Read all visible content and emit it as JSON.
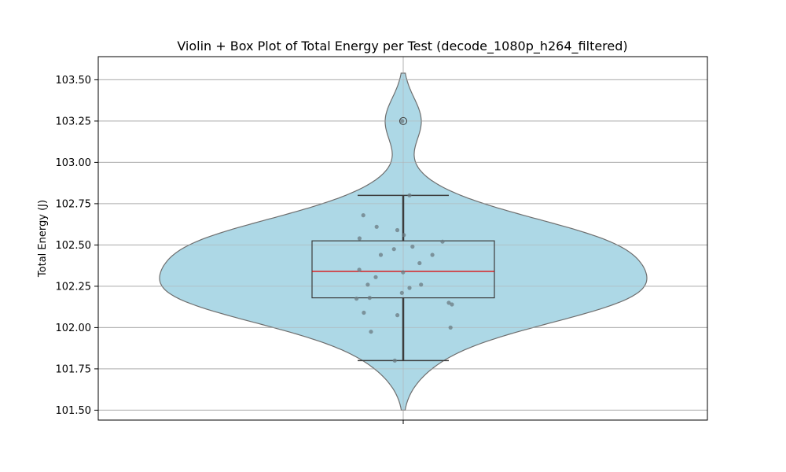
{
  "chart_data": {
    "type": "violin",
    "title": "Violin + Box Plot of Total Energy per Test (decode_1080p_h264_filtered)",
    "xlabel": "",
    "ylabel": "Total Energy (J)",
    "ylim": [
      101.44,
      103.64
    ],
    "yticks": [
      101.5,
      101.75,
      102.0,
      102.25,
      102.5,
      102.75,
      103.0,
      103.25,
      103.5
    ],
    "ytick_labels": [
      "101.50",
      "101.75",
      "102.00",
      "102.25",
      "102.50",
      "102.75",
      "103.00",
      "103.25",
      "103.50"
    ],
    "grid": true,
    "violin_range": [
      101.5,
      103.54
    ],
    "box": {
      "whisker_low": 101.8,
      "q1": 102.18,
      "median": 102.34,
      "q3": 102.525,
      "whisker_high": 102.8,
      "outliers": [
        103.25
      ]
    },
    "points": [
      103.25,
      102.8,
      102.68,
      102.61,
      102.59,
      102.56,
      102.54,
      102.52,
      102.49,
      102.475,
      102.44,
      102.44,
      102.39,
      102.35,
      102.335,
      102.305,
      102.26,
      102.26,
      102.24,
      102.21,
      102.18,
      102.175,
      102.15,
      102.14,
      102.09,
      102.075,
      102.0,
      101.975,
      101.8
    ],
    "colors": {
      "violin_fill": "#add8e6",
      "violin_edge": "#6e6e6e",
      "box_edge": "#3c3c3c",
      "median": "#e00000",
      "points": "#6b7b82",
      "grid": "#b0b0b0"
    }
  }
}
